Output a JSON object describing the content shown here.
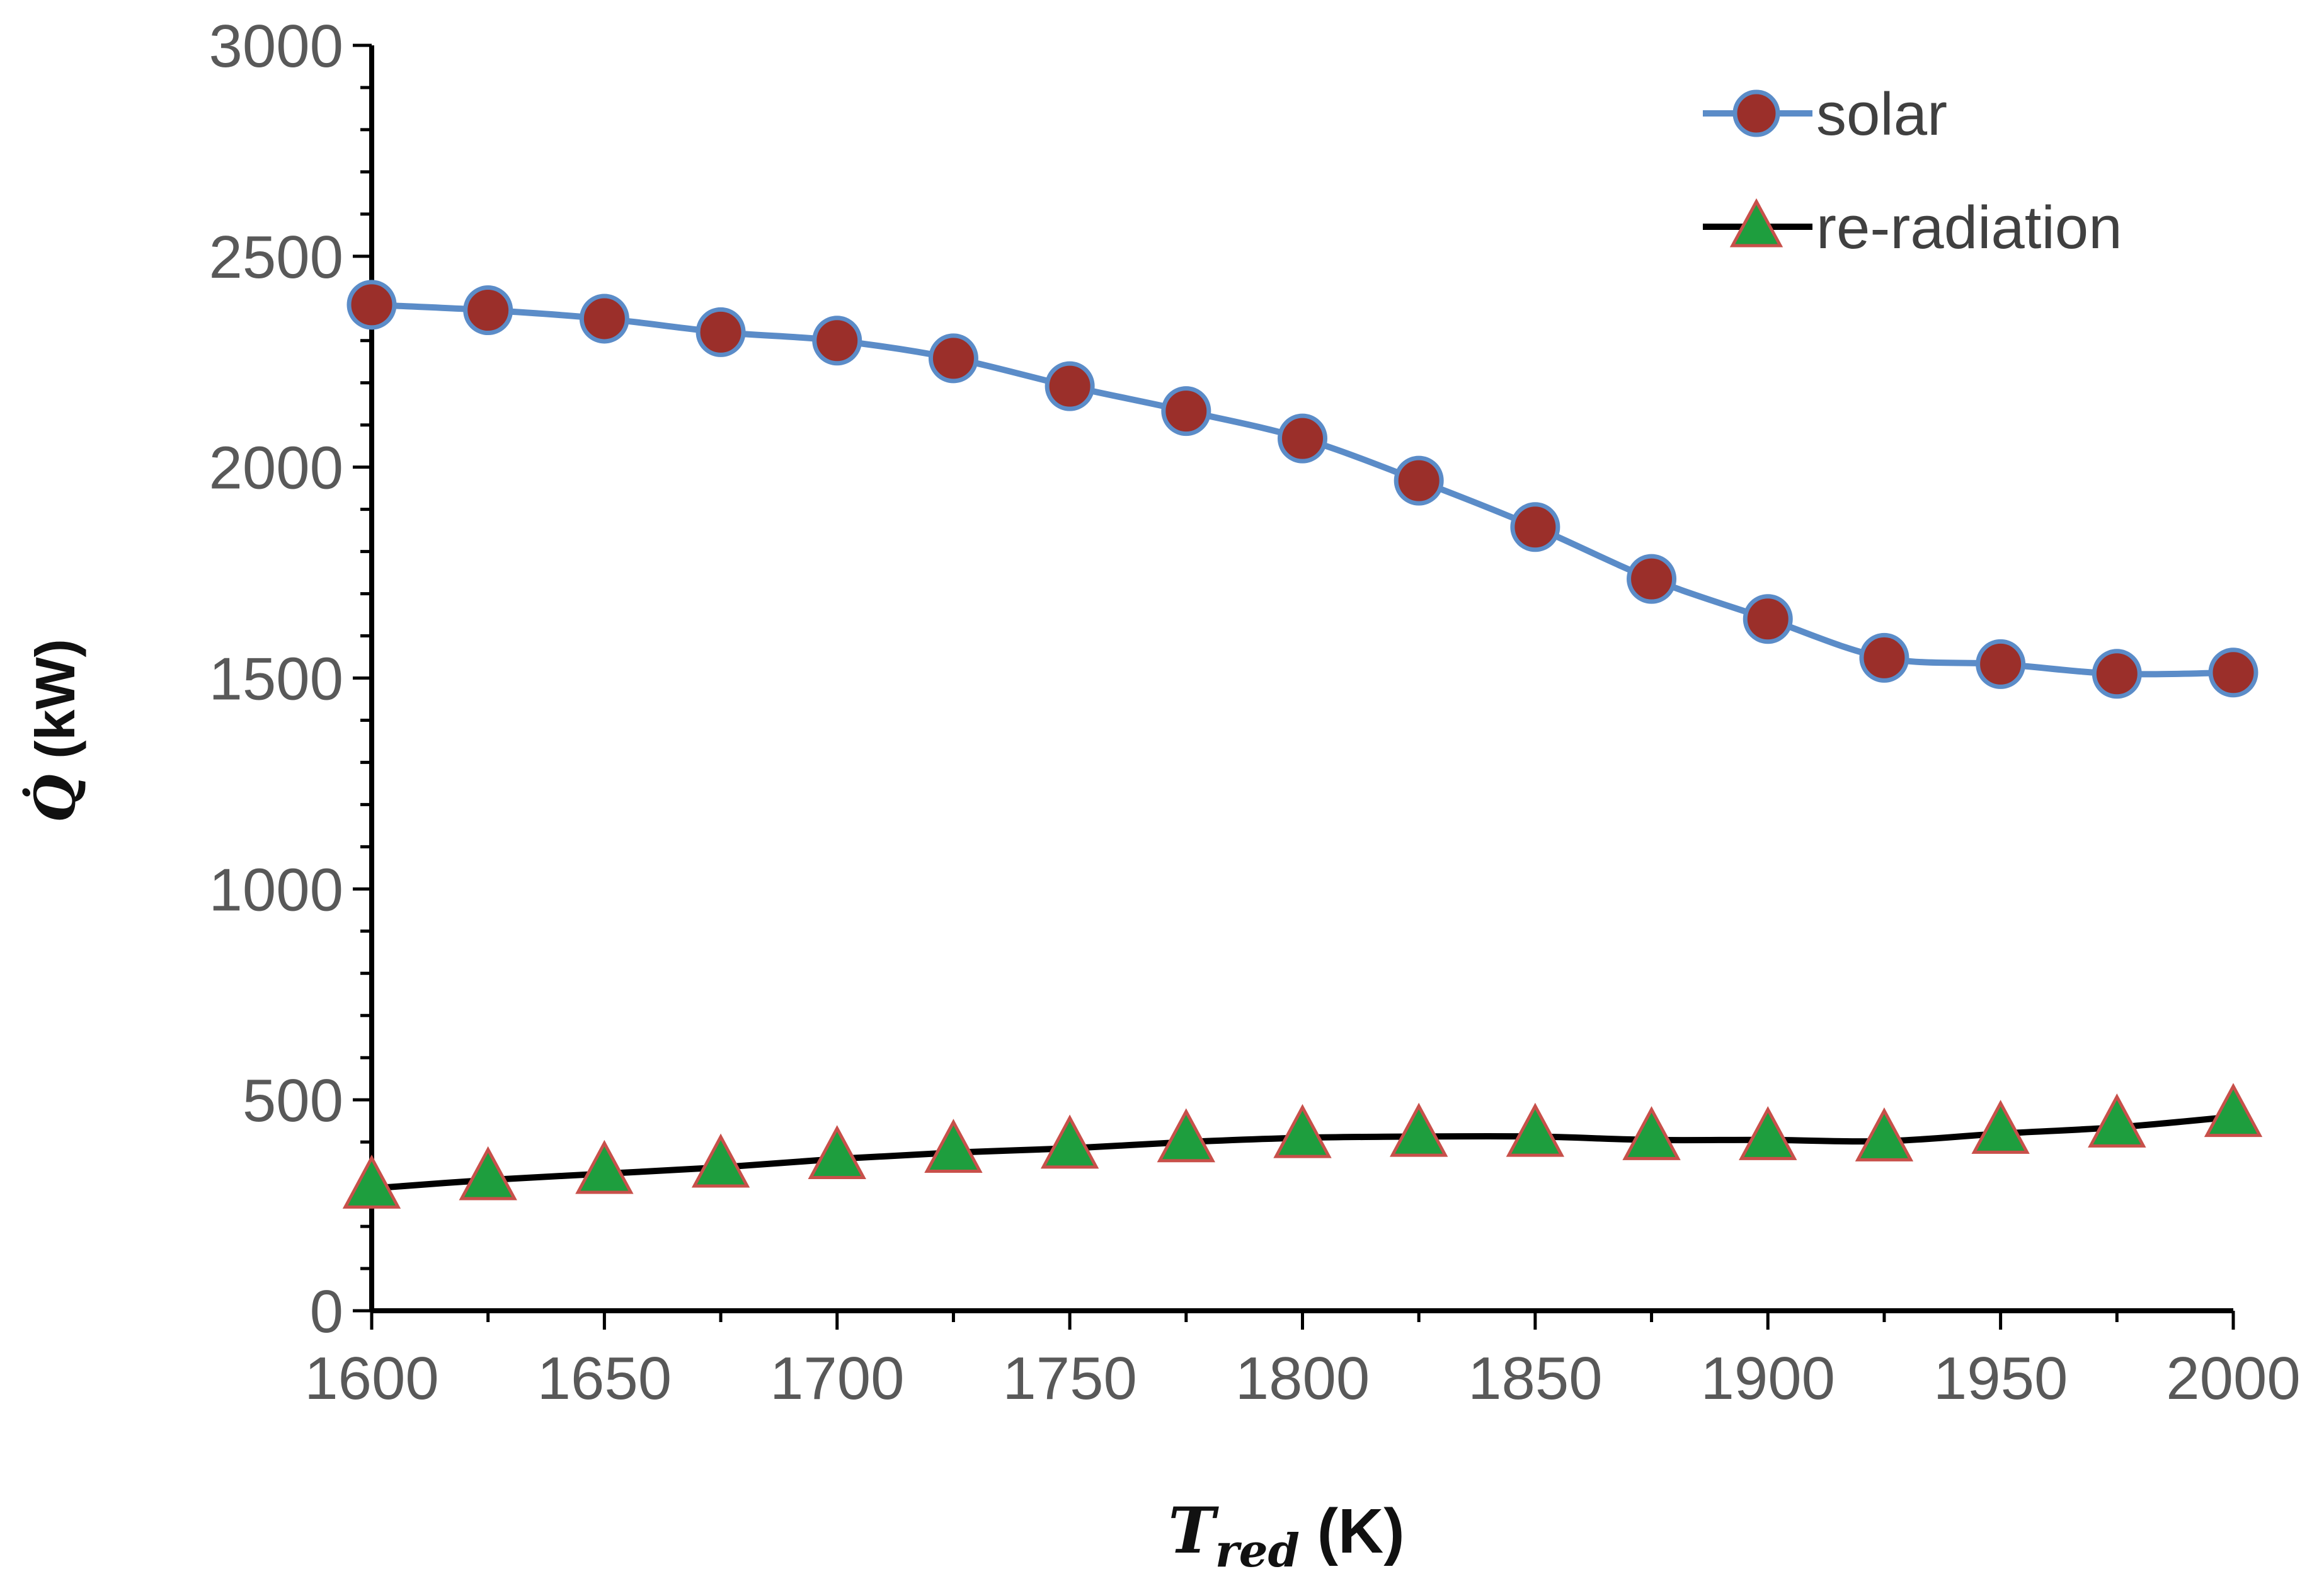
{
  "chart_data": {
    "type": "line",
    "title": "",
    "xlabel": {
      "symbol": "T",
      "subscript": "red",
      "unit": "(K)"
    },
    "ylabel": {
      "symbol": "Q̇",
      "unit": "(kW)"
    },
    "xlim": [
      1600,
      2000
    ],
    "ylim": [
      0,
      3000
    ],
    "x_ticks": [
      "1600",
      "1650",
      "1700",
      "1750",
      "1800",
      "1850",
      "1900",
      "1950",
      "2000"
    ],
    "y_ticks": [
      "0",
      "500",
      "1000",
      "1500",
      "2000",
      "2500",
      "3000"
    ],
    "x_tick_values": [
      1600,
      1650,
      1700,
      1750,
      1800,
      1850,
      1900,
      1950,
      2000
    ],
    "y_tick_values": [
      0,
      500,
      1000,
      1500,
      2000,
      2500,
      3000
    ],
    "x": [
      1600,
      1625,
      1650,
      1675,
      1700,
      1725,
      1750,
      1775,
      1800,
      1825,
      1850,
      1875,
      1900,
      1925,
      1950,
      1975,
      2000
    ],
    "series": [
      {
        "name": "solar",
        "marker": "circle",
        "line_color": "#5B8CC8",
        "marker_color": "#9B2F2A",
        "values": [
          2385,
          2372,
          2352,
          2320,
          2300,
          2258,
          2192,
          2133,
          2068,
          1968,
          1858,
          1735,
          1640,
          1548,
          1533,
          1510,
          1513
        ]
      },
      {
        "name": "re-radiation",
        "marker": "triangle",
        "line_color": "#000000",
        "marker_color": "#1E9E3E",
        "values": [
          290,
          310,
          325,
          340,
          360,
          375,
          385,
          400,
          410,
          413,
          413,
          405,
          405,
          402,
          420,
          435,
          460
        ]
      }
    ],
    "legend_position": "top-right",
    "grid": false
  }
}
